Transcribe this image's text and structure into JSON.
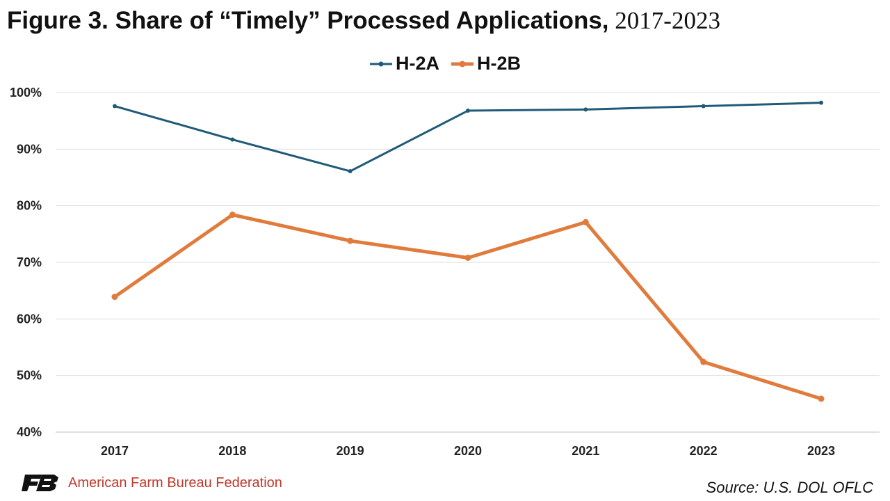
{
  "title": {
    "main": "Figure 3. Share of “Timely” Processed Applications,",
    "years": " 2017-2023"
  },
  "footer": {
    "organization": "American Farm Bureau Federation",
    "source": "Source: U.S. DOL OFLC"
  },
  "chart_data": {
    "type": "line",
    "title": "Figure 3. Share of “Timely” Processed Applications, 2017-2023",
    "xlabel": "",
    "ylabel": "",
    "categories": [
      "2017",
      "2018",
      "2019",
      "2020",
      "2021",
      "2022",
      "2023"
    ],
    "ylim": [
      40,
      100
    ],
    "yticks": [
      "40%",
      "50%",
      "60%",
      "70%",
      "80%",
      "90%",
      "100%"
    ],
    "grid": true,
    "legend_position": "top-center",
    "series": [
      {
        "name": "H-2A",
        "color": "#1f5a78",
        "values": [
          97.6,
          91.7,
          86.1,
          96.8,
          97.0,
          97.6,
          98.2
        ]
      },
      {
        "name": "H-2B",
        "color": "#e07b3c",
        "values": [
          63.9,
          78.4,
          73.8,
          70.8,
          77.1,
          52.4,
          45.9
        ]
      }
    ]
  }
}
